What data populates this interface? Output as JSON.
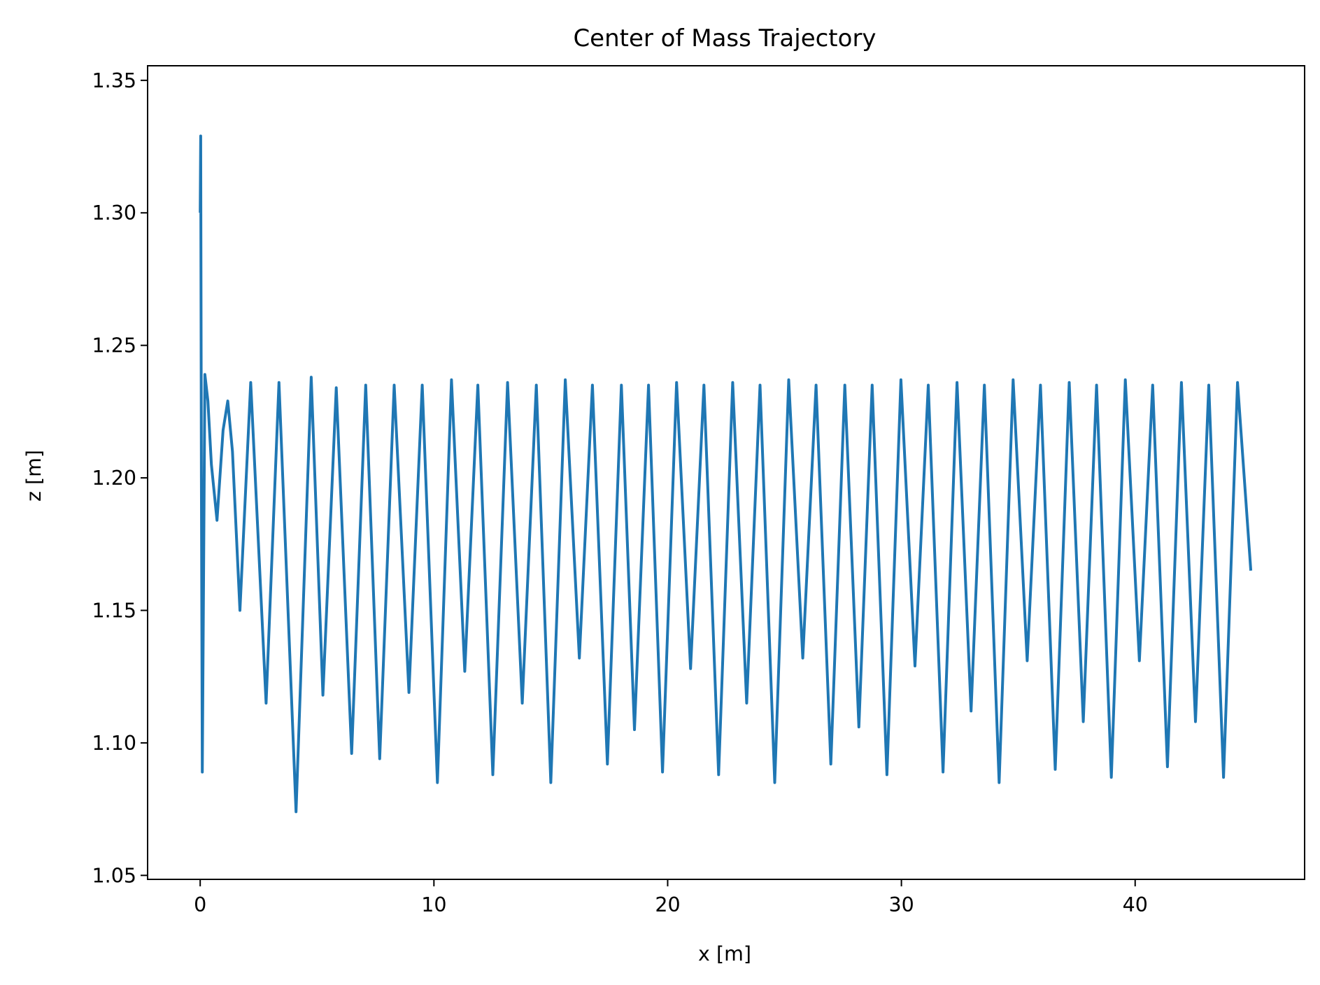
{
  "chart_data": {
    "type": "line",
    "title": "Center of Mass Trajectory",
    "xlabel": "x [m]",
    "ylabel": "z [m]",
    "xlim": [
      -2.25,
      47.25
    ],
    "ylim": [
      1.0485,
      1.3555
    ],
    "xticks": [
      {
        "value": 0,
        "label": "0"
      },
      {
        "value": 10,
        "label": "10"
      },
      {
        "value": 20,
        "label": "20"
      },
      {
        "value": 30,
        "label": "30"
      },
      {
        "value": 40,
        "label": "40"
      }
    ],
    "yticks": [
      {
        "value": 1.05,
        "label": "1.05"
      },
      {
        "value": 1.1,
        "label": "1.10"
      },
      {
        "value": 1.15,
        "label": "1.15"
      },
      {
        "value": 1.2,
        "label": "1.20"
      },
      {
        "value": 1.25,
        "label": "1.25"
      },
      {
        "value": 1.3,
        "label": "1.30"
      },
      {
        "value": 1.35,
        "label": "1.35"
      }
    ],
    "grid": false,
    "series": [
      {
        "color": "#1f77b4",
        "points": [
          [
            0.0,
            1.3
          ],
          [
            0.02,
            1.329
          ],
          [
            0.05,
            1.2
          ],
          [
            0.09,
            1.089
          ],
          [
            0.2,
            1.239
          ],
          [
            0.33,
            1.229
          ],
          [
            0.48,
            1.205
          ],
          [
            0.72,
            1.184
          ],
          [
            0.98,
            1.218
          ],
          [
            1.18,
            1.229
          ],
          [
            1.38,
            1.21
          ],
          [
            1.7,
            1.15
          ],
          [
            2.16,
            1.236
          ],
          [
            2.82,
            1.115
          ],
          [
            3.37,
            1.236
          ],
          [
            4.1,
            1.074
          ],
          [
            4.75,
            1.238
          ],
          [
            5.25,
            1.118
          ],
          [
            5.82,
            1.234
          ],
          [
            6.48,
            1.096
          ],
          [
            7.08,
            1.235
          ],
          [
            7.68,
            1.094
          ],
          [
            8.3,
            1.235
          ],
          [
            8.93,
            1.119
          ],
          [
            9.5,
            1.235
          ],
          [
            10.15,
            1.085
          ],
          [
            10.75,
            1.237
          ],
          [
            11.32,
            1.127
          ],
          [
            11.88,
            1.235
          ],
          [
            12.52,
            1.088
          ],
          [
            13.15,
            1.236
          ],
          [
            13.78,
            1.115
          ],
          [
            14.38,
            1.235
          ],
          [
            15.0,
            1.085
          ],
          [
            15.62,
            1.237
          ],
          [
            16.22,
            1.132
          ],
          [
            16.78,
            1.235
          ],
          [
            17.42,
            1.092
          ],
          [
            18.02,
            1.235
          ],
          [
            18.58,
            1.105
          ],
          [
            19.18,
            1.235
          ],
          [
            19.78,
            1.089
          ],
          [
            20.38,
            1.236
          ],
          [
            20.98,
            1.128
          ],
          [
            21.55,
            1.235
          ],
          [
            22.18,
            1.088
          ],
          [
            22.78,
            1.236
          ],
          [
            23.38,
            1.115
          ],
          [
            23.95,
            1.235
          ],
          [
            24.58,
            1.085
          ],
          [
            25.18,
            1.237
          ],
          [
            25.78,
            1.132
          ],
          [
            26.35,
            1.235
          ],
          [
            26.98,
            1.092
          ],
          [
            27.58,
            1.235
          ],
          [
            28.18,
            1.106
          ],
          [
            28.75,
            1.235
          ],
          [
            29.38,
            1.088
          ],
          [
            29.98,
            1.237
          ],
          [
            30.58,
            1.129
          ],
          [
            31.15,
            1.235
          ],
          [
            31.78,
            1.089
          ],
          [
            32.38,
            1.236
          ],
          [
            32.98,
            1.112
          ],
          [
            33.55,
            1.235
          ],
          [
            34.18,
            1.085
          ],
          [
            34.78,
            1.237
          ],
          [
            35.38,
            1.131
          ],
          [
            35.95,
            1.235
          ],
          [
            36.58,
            1.09
          ],
          [
            37.18,
            1.236
          ],
          [
            37.78,
            1.108
          ],
          [
            38.35,
            1.235
          ],
          [
            38.98,
            1.087
          ],
          [
            39.58,
            1.237
          ],
          [
            40.18,
            1.131
          ],
          [
            40.75,
            1.235
          ],
          [
            41.38,
            1.091
          ],
          [
            41.98,
            1.236
          ],
          [
            42.58,
            1.108
          ],
          [
            43.15,
            1.235
          ],
          [
            43.78,
            1.087
          ],
          [
            44.38,
            1.236
          ],
          [
            44.95,
            1.165
          ]
        ]
      }
    ]
  }
}
